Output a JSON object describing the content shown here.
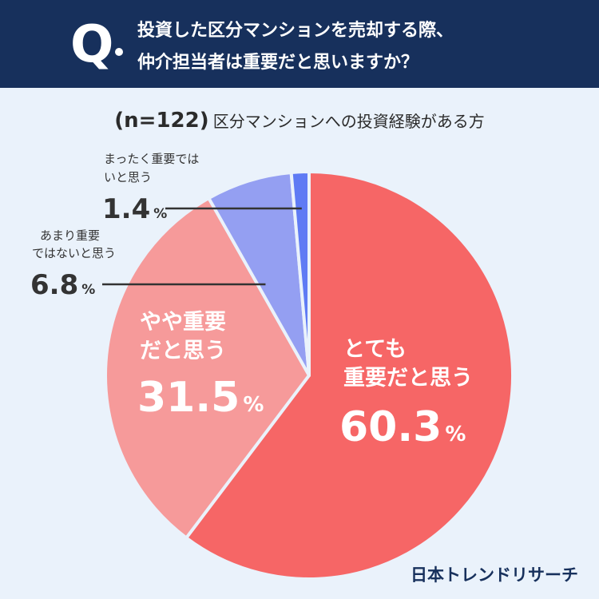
{
  "question": {
    "mark": "Q",
    "line1": "投資した区分マンションを売却する際、",
    "line2": "仲介担当者は重要だと思いますか？"
  },
  "subtitle": {
    "n_label": "(n=122)",
    "text": "区分マンションへの投資経験がある方"
  },
  "brand": "日本トレンドリサーチ",
  "colors": {
    "header_bg": "#17305c",
    "page_bg": "#eaf2fb",
    "very_important": "#f66666",
    "somewhat_important": "#f69a9a",
    "not_very_important": "#949ff2",
    "not_at_all": "#5f7bf4"
  },
  "chart_data": {
    "type": "pie",
    "title": "投資した区分マンションを売却する際、仲介担当者は重要だと思いますか？",
    "sample": "(n=122)",
    "slices": [
      {
        "label_lines": [
          "とても",
          "重要だと思う"
        ],
        "value": 60.3,
        "value_text": "60.3",
        "unit": "%",
        "color": "#f66666"
      },
      {
        "label_lines": [
          "やや重要",
          "だと思う"
        ],
        "value": 31.5,
        "value_text": "31.5",
        "unit": "%",
        "color": "#f69a9a"
      },
      {
        "label_lines": [
          "あまり重要",
          "ではないと思う"
        ],
        "value": 6.8,
        "value_text": "6.8",
        "unit": "%",
        "color": "#949ff2"
      },
      {
        "label_lines": [
          "まったく重要では",
          "いと思う"
        ],
        "value": 1.4,
        "value_text": "1.4",
        "unit": "%",
        "color": "#5f7bf4"
      }
    ]
  }
}
